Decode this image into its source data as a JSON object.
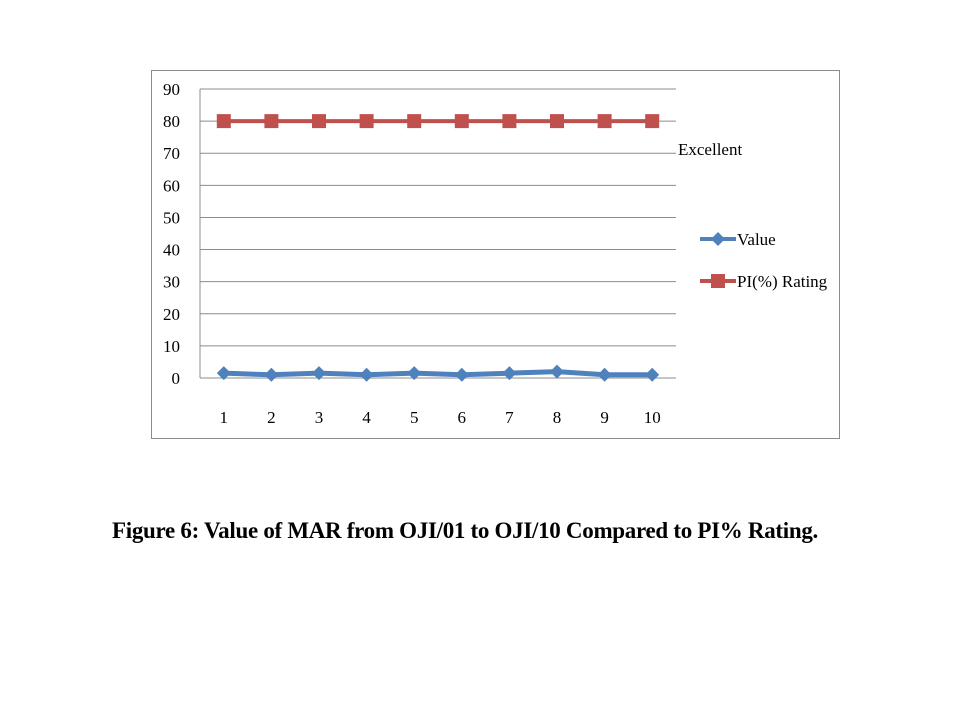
{
  "chart_data": {
    "type": "line",
    "categories": [
      "1",
      "2",
      "3",
      "4",
      "5",
      "6",
      "7",
      "8",
      "9",
      "10"
    ],
    "series": [
      {
        "name": "Value",
        "values": [
          1.5,
          1.0,
          1.5,
          1.0,
          1.5,
          1.0,
          1.5,
          2.0,
          1.0,
          1.0
        ],
        "color": "#4f81bd",
        "marker": "diamond"
      },
      {
        "name": "PI(%) Rating",
        "values": [
          80,
          80,
          80,
          80,
          80,
          80,
          80,
          80,
          80,
          80
        ],
        "color": "#c0504d",
        "marker": "square"
      }
    ],
    "ylim": [
      0,
      90
    ],
    "yticks": [
      "0",
      "10",
      "20",
      "30",
      "40",
      "50",
      "60",
      "70",
      "80",
      "90"
    ],
    "grid": true,
    "legend_position": "right",
    "annotation": "Excellent"
  },
  "caption": "Figure 6: Value of MAR from OJI/01 to OJI/10 Compared to PI% Rating."
}
